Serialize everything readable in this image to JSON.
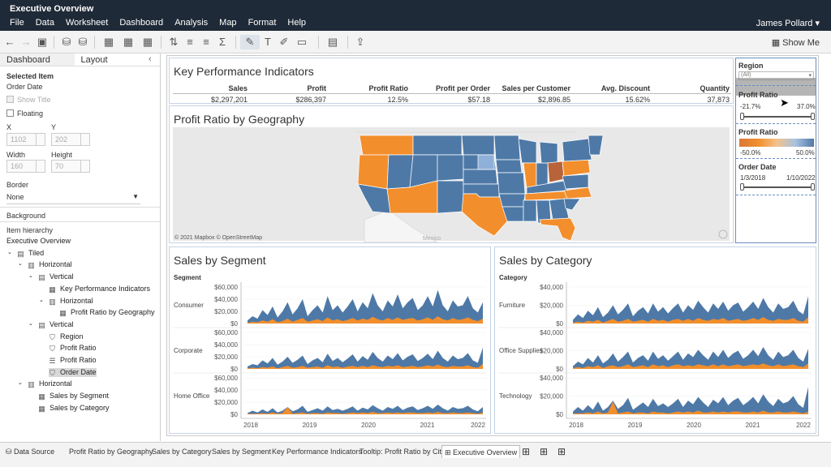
{
  "app": {
    "title": "Executive Overview",
    "user": "James Pollard"
  },
  "menu": [
    "File",
    "Data",
    "Worksheet",
    "Dashboard",
    "Analysis",
    "Map",
    "Format",
    "Help"
  ],
  "toolbar": {
    "show_me": "Show Me"
  },
  "left_panel": {
    "tabs": [
      "Dashboard",
      "Layout"
    ],
    "selected_item_label": "Selected Item",
    "selected_item_value": "Order Date",
    "show_title": "Show Title",
    "floating": "Floating",
    "x_label": "X",
    "y_label": "Y",
    "x_value": "1102",
    "y_value": "202",
    "width_label": "Width",
    "height_label": "Height",
    "width_value": "160",
    "height_value": "70",
    "border_label": "Border",
    "border_value": "None",
    "background_label": "Background",
    "hierarchy_label": "Item hierarchy",
    "tree": [
      {
        "label": "Executive Overview",
        "indent": 0,
        "icon": "none"
      },
      {
        "label": "Tiled",
        "indent": 1,
        "icon": "tiled-icon"
      },
      {
        "label": "Horizontal",
        "indent": 2,
        "icon": "horizontal-icon"
      },
      {
        "label": "Vertical",
        "indent": 3,
        "icon": "vertical-icon"
      },
      {
        "label": "Key Performance Indicators",
        "indent": 4,
        "icon": "sheet-icon"
      },
      {
        "label": "Horizontal",
        "indent": 4,
        "icon": "horizontal-icon"
      },
      {
        "label": "Profit Ratio by Geography",
        "indent": 5,
        "icon": "sheet-icon"
      },
      {
        "label": "Vertical",
        "indent": 3,
        "icon": "vertical-icon"
      },
      {
        "label": "Region",
        "indent": 4,
        "icon": "filter-icon"
      },
      {
        "label": "Profit Ratio",
        "indent": 4,
        "icon": "filter-icon"
      },
      {
        "label": "Profit Ratio",
        "indent": 4,
        "icon": "legend-icon"
      },
      {
        "label": "Order Date",
        "indent": 4,
        "icon": "filter-icon"
      },
      {
        "label": "Horizontal",
        "indent": 2,
        "icon": "horizontal-icon"
      },
      {
        "label": "Sales by Segment",
        "indent": 3,
        "icon": "sheet-icon"
      },
      {
        "label": "Sales by Category",
        "indent": 3,
        "icon": "sheet-icon"
      }
    ]
  },
  "kpi": {
    "title": "Key Performance Indicators",
    "headers": [
      "Sales",
      "Profit",
      "Profit Ratio",
      "Profit per Order",
      "Sales per Customer",
      "Avg. Discount",
      "Quantity"
    ],
    "values": [
      "$2,297,201",
      "$286,397",
      "12.5%",
      "$57.18",
      "$2,896.85",
      "15.62%",
      "37,873"
    ]
  },
  "map": {
    "title": "Profit Ratio by Geography",
    "attribution": "© 2021 Mapbox © OpenStreetMap",
    "mexico": "Mexico"
  },
  "filters": {
    "region_label": "Region",
    "region_value": "(All)",
    "profit_ratio_label": "Profit Ratio",
    "pr_min": "-21.7%",
    "pr_max": "37.0%",
    "legend_label": "Profit Ratio",
    "legend_min": "-50.0%",
    "legend_max": "50.0%",
    "order_date_label": "Order Date",
    "od_min": "1/3/2018",
    "od_max": "1/10/2022"
  },
  "colors": {
    "blue": "#4e79a7",
    "orange": "#f28e2b",
    "gray": "#8a8a8a"
  },
  "chart_data": [
    {
      "type": "area",
      "title": "Sales by Segment",
      "row_header": "Segment",
      "rows": [
        "Consumer",
        "Corporate",
        "Home Office"
      ],
      "y_ticks": [
        "$60,000",
        "$40,000",
        "$20,000",
        "$0"
      ],
      "x_ticks": [
        "2018",
        "2019",
        "2020",
        "2021",
        "2022"
      ],
      "ylim": [
        0,
        60000
      ],
      "series": [
        {
          "name": "Consumer",
          "blue": [
            5,
            12,
            8,
            22,
            14,
            28,
            10,
            20,
            35,
            15,
            25,
            40,
            12,
            22,
            30,
            18,
            45,
            22,
            30,
            18,
            28,
            40,
            20,
            35,
            25,
            50,
            30,
            20,
            38,
            28,
            48,
            25,
            35,
            42,
            22,
            30,
            45,
            28,
            55,
            30,
            20,
            38,
            28,
            30,
            45,
            25,
            18,
            35
          ],
          "orange": [
            1,
            3,
            2,
            5,
            3,
            7,
            2,
            4,
            8,
            3,
            6,
            9,
            3,
            5,
            7,
            4,
            10,
            5,
            7,
            4,
            6,
            9,
            5,
            8,
            6,
            11,
            7,
            5,
            9,
            6,
            10,
            6,
            8,
            9,
            5,
            7,
            10,
            6,
            12,
            7,
            5,
            9,
            6,
            7,
            10,
            6,
            4,
            8
          ]
        },
        {
          "name": "Corporate",
          "blue": [
            4,
            8,
            6,
            14,
            9,
            18,
            7,
            12,
            20,
            10,
            15,
            22,
            8,
            14,
            18,
            11,
            25,
            13,
            18,
            11,
            17,
            24,
            12,
            21,
            15,
            28,
            18,
            12,
            22,
            16,
            26,
            14,
            20,
            24,
            13,
            18,
            25,
            16,
            30,
            18,
            12,
            22,
            16,
            18,
            26,
            14,
            10,
            35
          ],
          "orange": [
            1,
            2,
            1,
            3,
            2,
            4,
            1,
            3,
            5,
            2,
            3,
            5,
            2,
            3,
            4,
            2,
            6,
            3,
            4,
            2,
            4,
            5,
            3,
            5,
            3,
            6,
            4,
            3,
            5,
            4,
            6,
            3,
            4,
            5,
            3,
            4,
            6,
            4,
            7,
            4,
            3,
            5,
            4,
            4,
            6,
            3,
            2,
            8
          ]
        },
        {
          "name": "Home Office",
          "blue": [
            2,
            6,
            3,
            8,
            4,
            10,
            3,
            6,
            12,
            5,
            8,
            14,
            4,
            7,
            10,
            6,
            13,
            7,
            9,
            6,
            9,
            13,
            6,
            11,
            8,
            15,
            10,
            6,
            12,
            9,
            14,
            7,
            11,
            13,
            7,
            10,
            14,
            9,
            16,
            10,
            6,
            12,
            9,
            10,
            14,
            8,
            5,
            12
          ],
          "orange": [
            1,
            1,
            1,
            2,
            1,
            3,
            1,
            2,
            12,
            1,
            2,
            3,
            1,
            2,
            2,
            1,
            3,
            2,
            2,
            1,
            2,
            3,
            2,
            3,
            2,
            4,
            2,
            2,
            3,
            2,
            3,
            2,
            3,
            3,
            2,
            2,
            3,
            2,
            4,
            2,
            2,
            3,
            2,
            2,
            3,
            2,
            1,
            3
          ]
        }
      ]
    },
    {
      "type": "area",
      "title": "Sales by Category",
      "row_header": "Category",
      "rows": [
        "Furniture",
        "Office Supplies",
        "Technology"
      ],
      "y_ticks": [
        "$40,000",
        "$20,000",
        "$0"
      ],
      "x_ticks": [
        "2018",
        "2019",
        "2020",
        "2021",
        "2022"
      ],
      "ylim": [
        0,
        40000
      ],
      "series": [
        {
          "name": "Furniture",
          "blue": [
            4,
            10,
            6,
            14,
            9,
            18,
            7,
            12,
            20,
            10,
            15,
            22,
            8,
            14,
            18,
            11,
            22,
            13,
            18,
            11,
            17,
            22,
            12,
            20,
            15,
            25,
            18,
            12,
            22,
            16,
            24,
            14,
            20,
            23,
            13,
            18,
            24,
            16,
            28,
            18,
            12,
            22,
            16,
            18,
            25,
            14,
            10,
            30
          ],
          "orange": [
            1,
            2,
            1,
            3,
            2,
            4,
            1,
            3,
            5,
            2,
            3,
            5,
            2,
            3,
            4,
            2,
            5,
            3,
            4,
            2,
            4,
            5,
            3,
            5,
            3,
            6,
            4,
            3,
            5,
            4,
            6,
            3,
            4,
            5,
            3,
            4,
            6,
            4,
            7,
            4,
            3,
            5,
            4,
            4,
            6,
            3,
            2,
            7
          ]
        },
        {
          "name": "Office Supplies",
          "blue": [
            3,
            8,
            5,
            12,
            7,
            15,
            6,
            10,
            17,
            8,
            13,
            19,
            7,
            12,
            15,
            9,
            19,
            11,
            15,
            9,
            14,
            19,
            10,
            17,
            13,
            21,
            15,
            10,
            19,
            13,
            21,
            12,
            17,
            20,
            11,
            15,
            21,
            14,
            24,
            15,
            10,
            19,
            13,
            15,
            21,
            12,
            8,
            22
          ],
          "orange": [
            1,
            2,
            1,
            3,
            2,
            4,
            1,
            3,
            4,
            2,
            3,
            5,
            2,
            3,
            4,
            2,
            5,
            3,
            4,
            2,
            4,
            5,
            3,
            4,
            3,
            5,
            4,
            3,
            5,
            3,
            5,
            3,
            4,
            5,
            3,
            4,
            5,
            4,
            6,
            4,
            3,
            5,
            3,
            4,
            5,
            3,
            2,
            6
          ]
        },
        {
          "name": "Technology",
          "blue": [
            3,
            8,
            4,
            10,
            5,
            14,
            4,
            8,
            15,
            6,
            10,
            18,
            5,
            9,
            13,
            8,
            17,
            9,
            12,
            8,
            12,
            17,
            8,
            15,
            11,
            19,
            13,
            8,
            16,
            12,
            19,
            10,
            15,
            18,
            10,
            14,
            19,
            12,
            22,
            14,
            9,
            17,
            12,
            14,
            20,
            11,
            7,
            30
          ],
          "orange": [
            1,
            1,
            1,
            2,
            1,
            3,
            1,
            2,
            14,
            1,
            2,
            3,
            1,
            2,
            2,
            1,
            3,
            2,
            2,
            1,
            2,
            3,
            2,
            3,
            2,
            4,
            2,
            2,
            3,
            2,
            3,
            2,
            3,
            3,
            2,
            2,
            3,
            2,
            4,
            2,
            2,
            3,
            2,
            2,
            3,
            2,
            1,
            3
          ]
        }
      ]
    }
  ],
  "tabs": [
    "Data Source",
    "Profit Ratio by Geography",
    "Sales by Category",
    "Sales by Segment",
    "Key Performance Indicators",
    "Tooltip: Profit Ratio by City",
    "Executive Overview"
  ]
}
